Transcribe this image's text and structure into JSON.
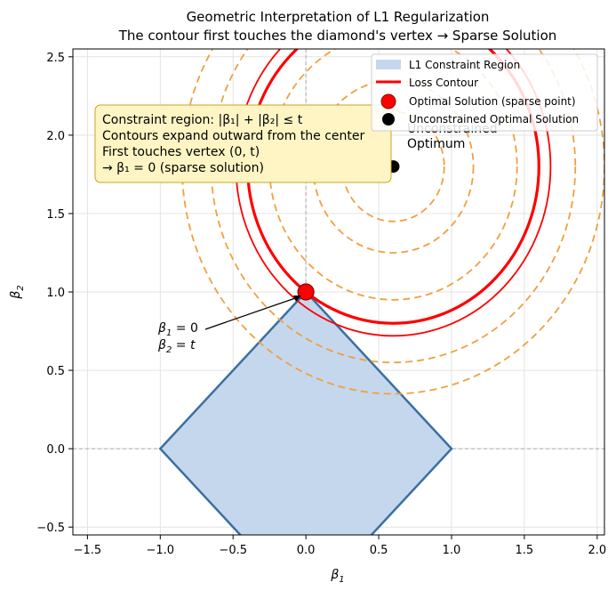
{
  "chart_data": {
    "type": "line",
    "title": "Geometric Interpretation of L1 Regularization",
    "subtitle": "The contour first touches the diamond's vertex → Sparse Solution",
    "xlabel_main": "β",
    "xlabel_sub": "1",
    "ylabel_main": "β",
    "ylabel_sub": "2",
    "xlim": [
      -1.6,
      2.05
    ],
    "ylim": [
      -0.55,
      2.55
    ],
    "grid": true,
    "x_ticks": [
      -1.5,
      -1.0,
      -0.5,
      0.0,
      0.5,
      1.0,
      1.5,
      2.0
    ],
    "x_tick_labels": [
      "−1.5",
      "−1.0",
      "−0.5",
      "0.0",
      "0.5",
      "1.0",
      "1.5",
      "2.0"
    ],
    "y_ticks": [
      -0.5,
      0.0,
      0.5,
      1.0,
      1.5,
      2.0,
      2.5
    ],
    "y_tick_labels": [
      "−0.5",
      "0.0",
      "0.5",
      "1.0",
      "1.5",
      "2.0",
      "2.5"
    ],
    "constraint_region": {
      "name": "L1 Constraint Region",
      "vertices": [
        [
          0,
          1
        ],
        [
          1,
          0
        ],
        [
          0,
          -1
        ],
        [
          -1,
          0
        ]
      ],
      "fill": "#c5d7ec",
      "edge": "#3a6fa3"
    },
    "contour_center": [
      0.6,
      1.8
    ],
    "contours_solid": [
      {
        "name": "Loss Contour",
        "radius": 1.08,
        "color": "#ff0000",
        "width": "thin"
      },
      {
        "name": "Loss Contour (touching)",
        "radius": 1.0,
        "color": "#ff0000",
        "width": "thick"
      }
    ],
    "contours_dashed": {
      "color": "#f0a040",
      "radii": [
        0.35,
        0.55,
        0.85,
        1.25,
        1.45
      ]
    },
    "optimal_point": {
      "name": "Optimal Solution (sparse point)",
      "x": 0.0,
      "y": 1.0,
      "color": "#ff0000"
    },
    "unconstrained_point": {
      "name": "Unconstrained Optimal Solution",
      "x": 0.6,
      "y": 1.8,
      "color": "#000000"
    },
    "unconstrained_label_line1": "Unconstrained",
    "unconstrained_label_line2": "Optimum",
    "vertex_annotation": {
      "line1_main": "β",
      "line1_sub": "1",
      "line1_rest": " = 0",
      "line2_main": "β",
      "line2_sub": "2",
      "line2_rest": " = t",
      "arrow_to": [
        0.0,
        1.0
      ]
    },
    "info_box": {
      "lines": [
        "Constraint region:  |β₁| + |β₂| ≤ t",
        "Contours expand outward from the center",
        "First touches vertex (0, t)",
        "→ β₁ = 0  (sparse solution)"
      ],
      "fill": "#fff5c4",
      "edge": "#c9a227"
    },
    "legend": {
      "placement": "top-right",
      "entries": [
        "L1 Constraint Region",
        "Loss Contour",
        "Optimal Solution (sparse point)",
        "Unconstrained Optimal Solution"
      ]
    }
  }
}
